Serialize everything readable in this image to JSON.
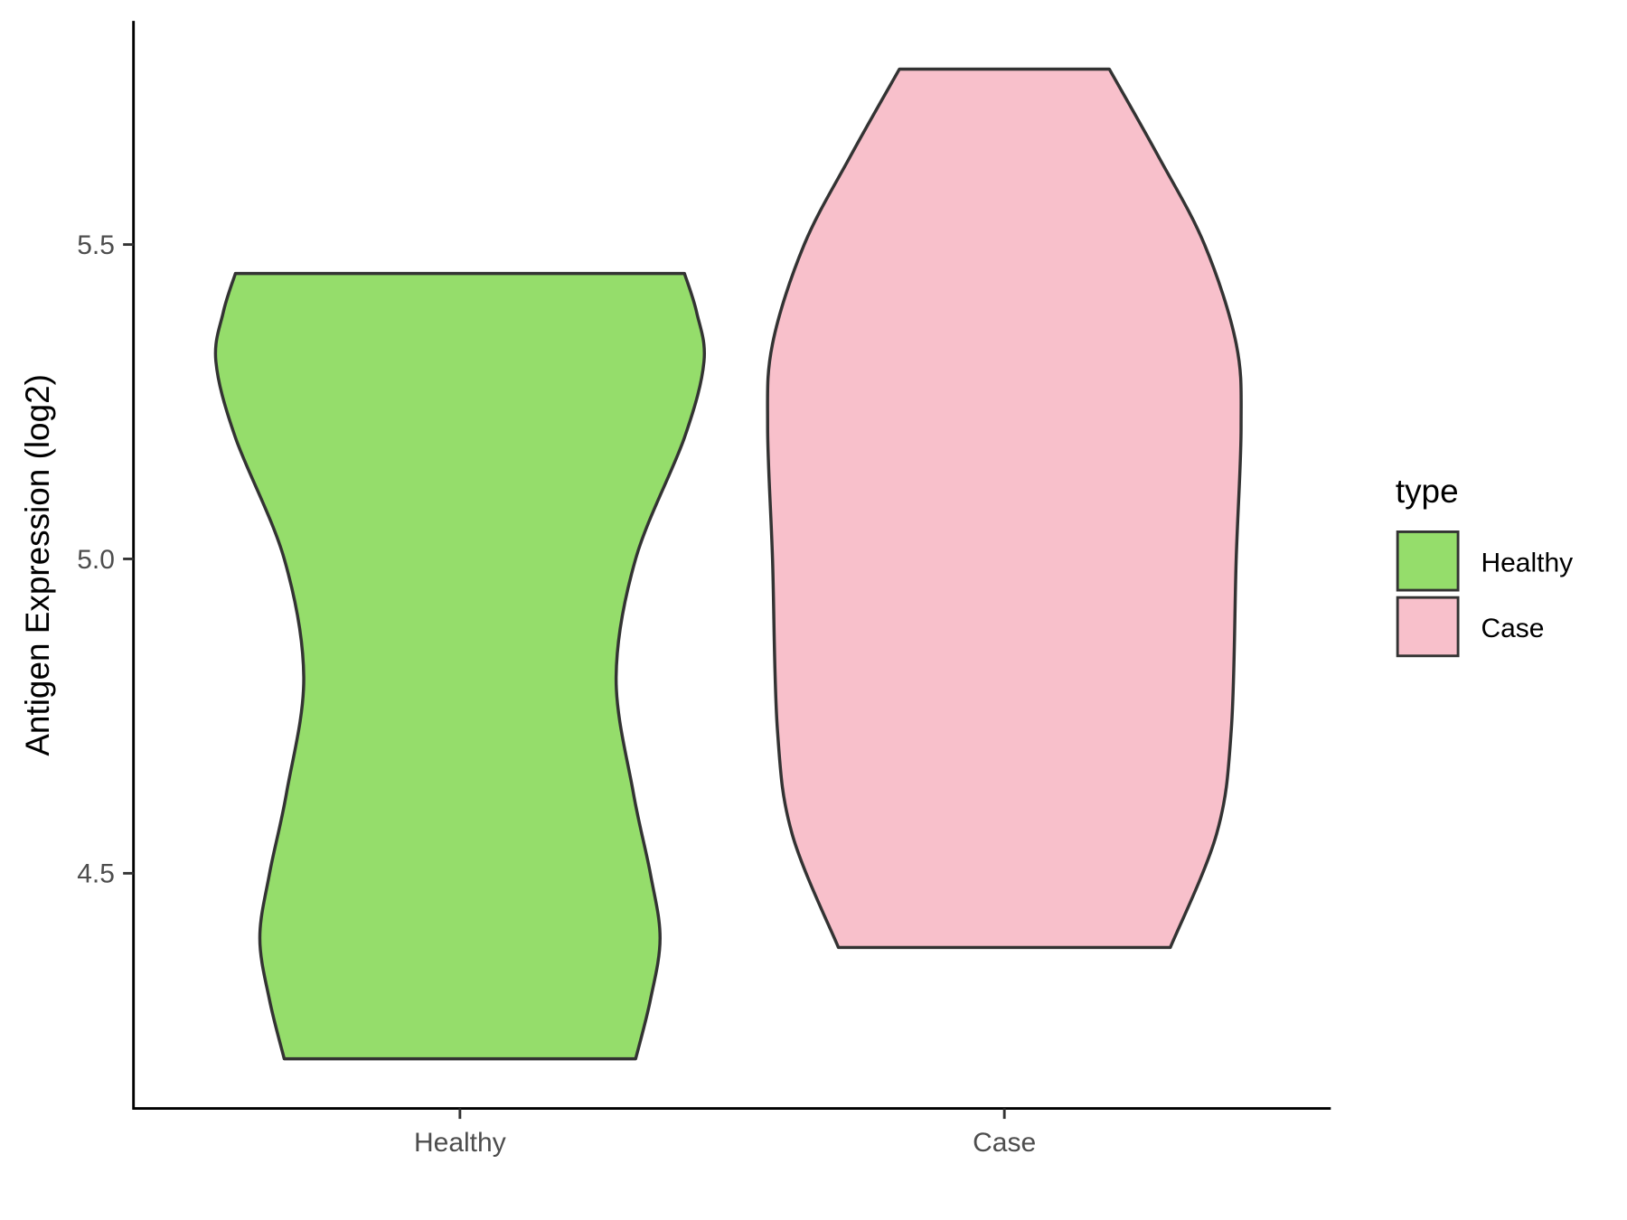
{
  "chart_data": {
    "type": "violin",
    "title": "",
    "xlabel": "",
    "ylabel": "Antigen Expression (log2)",
    "categories": [
      "Healthy",
      "Case"
    ],
    "yticks": [
      4.5,
      5.0,
      5.5
    ],
    "ytick_labels": [
      "4.5",
      "5.0",
      "5.5"
    ],
    "ylim": [
      4.13,
      5.86
    ],
    "grid": false,
    "legend": {
      "title": "type",
      "position": "right",
      "entries": [
        "Healthy",
        "Case"
      ]
    },
    "colors": {
      "Healthy": "#95DD6B",
      "Case": "#F8C0CB",
      "outline": "#333333"
    },
    "series": [
      {
        "name": "Healthy",
        "min": 4.205,
        "max": 5.454,
        "density_profile": {
          "y": [
            4.205,
            4.298,
            4.397,
            4.5,
            4.629,
            4.812,
            5.0,
            5.193,
            5.314,
            5.392,
            5.454
          ],
          "relative_width": [
            0.72,
            0.78,
            0.82,
            0.78,
            0.71,
            0.64,
            0.72,
            0.92,
            1.0,
            0.97,
            0.92
          ]
        }
      },
      {
        "name": "Case",
        "min": 4.382,
        "max": 5.779,
        "density_profile": {
          "y": [
            4.382,
            4.563,
            4.729,
            5.0,
            5.21,
            5.342,
            5.5,
            5.641,
            5.779
          ],
          "relative_width": [
            0.68,
            0.87,
            0.93,
            0.95,
            0.97,
            0.95,
            0.82,
            0.63,
            0.43
          ]
        }
      }
    ]
  }
}
